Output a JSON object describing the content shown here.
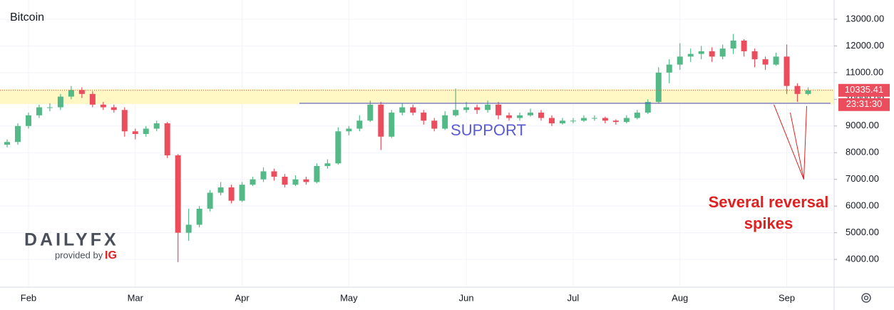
{
  "chart_data": {
    "type": "candlestick",
    "title": "Bitcoin",
    "categories": [
      null,
      null,
      "Feb",
      null,
      null,
      null,
      null,
      null,
      null,
      null,
      null,
      null,
      "Mar",
      null,
      null,
      null,
      null,
      null,
      null,
      null,
      null,
      null,
      "Apr",
      null,
      null,
      null,
      null,
      null,
      null,
      null,
      null,
      null,
      "May",
      null,
      null,
      null,
      null,
      null,
      null,
      null,
      null,
      null,
      null,
      "Jun",
      null,
      null,
      null,
      null,
      null,
      null,
      null,
      null,
      null,
      "Jul",
      null,
      null,
      null,
      null,
      null,
      null,
      null,
      null,
      null,
      "Aug",
      null,
      null,
      null,
      null,
      null,
      null,
      null,
      null,
      null,
      "Sep",
      null,
      null
    ],
    "open": [
      8300,
      8400,
      9000,
      9400,
      9700,
      9700,
      10100,
      10350,
      10200,
      9800,
      9700,
      9600,
      8800,
      8700,
      8900,
      9100,
      7900,
      5000,
      5300,
      5900,
      6500,
      6700,
      6200,
      6800,
      7000,
      7300,
      7100,
      6800,
      7000,
      6900,
      7500,
      7600,
      8800,
      8900,
      9200,
      9800,
      8600,
      9500,
      9700,
      9500,
      9200,
      8900,
      9400,
      9600,
      9700,
      9600,
      9800,
      9400,
      9300,
      9400,
      9500,
      9300,
      9100,
      9200,
      9200,
      9300,
      9300,
      9200,
      9150,
      9300,
      9500,
      9900,
      11000,
      11300,
      11600,
      11700,
      11800,
      11600,
      11900,
      12200,
      11800,
      11500,
      11300,
      11600,
      10500,
      10200
    ],
    "high": [
      8500,
      9100,
      9500,
      9800,
      9850,
      10200,
      10500,
      10450,
      10300,
      9900,
      9800,
      9700,
      8900,
      9000,
      9200,
      9150,
      7950,
      5900,
      6000,
      6600,
      6900,
      6800,
      6900,
      7100,
      7450,
      7400,
      7200,
      7150,
      7100,
      7600,
      7750,
      8950,
      9000,
      9400,
      9950,
      9900,
      9600,
      9850,
      9800,
      9600,
      9300,
      9550,
      10400,
      9900,
      9800,
      9950,
      9900,
      9500,
      9500,
      9650,
      9600,
      9400,
      9300,
      9300,
      9400,
      9400,
      9350,
      9250,
      9400,
      9600,
      10000,
      11200,
      11500,
      12100,
      11900,
      12000,
      11950,
      12050,
      12450,
      12250,
      11900,
      11600,
      11750,
      12050,
      10600,
      10450
    ],
    "low": [
      8200,
      8300,
      8900,
      9300,
      9550,
      9600,
      10000,
      10050,
      9700,
      9600,
      9500,
      8600,
      8500,
      8600,
      8800,
      7800,
      3900,
      4700,
      5200,
      5800,
      6400,
      6100,
      6150,
      6750,
      6900,
      6950,
      6700,
      6750,
      6800,
      6850,
      7400,
      7550,
      8650,
      8800,
      9150,
      8100,
      8550,
      9400,
      9400,
      9050,
      8800,
      8850,
      9350,
      9500,
      9450,
      9500,
      9250,
      9200,
      9200,
      9350,
      9200,
      9000,
      9050,
      9100,
      9150,
      9200,
      9100,
      9050,
      9100,
      9250,
      9450,
      9850,
      10600,
      11100,
      11400,
      11500,
      11400,
      11500,
      11700,
      11600,
      11200,
      11100,
      11250,
      10200,
      9900,
      10150
    ],
    "close": [
      8400,
      9000,
      9400,
      9700,
      9700,
      10100,
      10350,
      10200,
      9800,
      9700,
      9600,
      8800,
      8700,
      8900,
      9100,
      7900,
      5000,
      5300,
      5900,
      6500,
      6700,
      6200,
      6800,
      7000,
      7300,
      7100,
      6800,
      7000,
      6900,
      7500,
      7600,
      8800,
      8900,
      9200,
      9800,
      8600,
      9500,
      9700,
      9500,
      9200,
      8900,
      9400,
      9600,
      9700,
      9600,
      9800,
      9400,
      9300,
      9400,
      9500,
      9300,
      9100,
      9200,
      9200,
      9300,
      9300,
      9200,
      9150,
      9300,
      9500,
      9900,
      11000,
      11300,
      11600,
      11700,
      11800,
      11600,
      11900,
      12200,
      11800,
      11500,
      11300,
      11600,
      10500,
      10200,
      10335.41
    ],
    "up_color": "#53b987",
    "down_color": "#eb4d5c",
    "ylim": [
      2960,
      13720
    ],
    "yticks": [
      {
        "value": 4000,
        "label": "4000.00"
      },
      {
        "value": 5000,
        "label": "5000.00"
      },
      {
        "value": 6000,
        "label": "6000.00"
      },
      {
        "value": 7000,
        "label": "7000.00"
      },
      {
        "value": 8000,
        "label": "8000.00"
      },
      {
        "value": 9000,
        "label": "9000.00"
      },
      {
        "value": 10000,
        "label": "10000.00"
      },
      {
        "value": 11000,
        "label": "11000.00"
      },
      {
        "value": 12000,
        "label": "12000.00"
      },
      {
        "value": 13000,
        "label": "13000.00"
      }
    ],
    "grid": true,
    "countdown": "23:31:30",
    "support_zone": [
      9820,
      10380
    ],
    "support_zone_color": "#fff8c4",
    "support_level": 9850,
    "support_color": "#5a5ad2",
    "support_label": "SUPPORT",
    "annotation": [
      "Several reversal",
      "spikes"
    ],
    "annotation_color": "#e0201f",
    "spike_target": 7000
  },
  "branding": {
    "logo": "DAILYFX",
    "provided_by": "provided by",
    "partner": "IG"
  }
}
